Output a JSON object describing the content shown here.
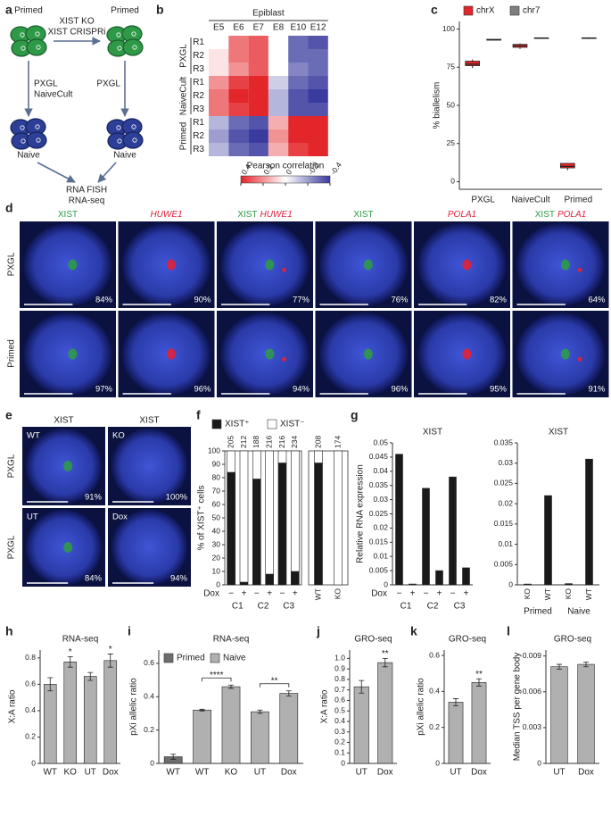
{
  "diagram": {
    "panel": "a",
    "primed_left": "Primed",
    "primed_right": "Primed",
    "ko_line1": "XIST KO",
    "ko_line2": "XIST CRISPRi",
    "left_arrow_line1": "PXGL",
    "left_arrow_line2": "NaiveCult",
    "right_arrow": "PXGL",
    "naive_left": "Naive",
    "naive_right": "Naive",
    "readout_line1": "RNA FISH",
    "readout_line2": "RNA-seq"
  },
  "fish_d": {
    "panel": "d",
    "column_titles": [
      [
        "XIST"
      ],
      [
        "HUWE1"
      ],
      [
        "XIST",
        "HUWE1"
      ],
      [
        "XIST"
      ],
      [
        "POLA1"
      ],
      [
        "XIST",
        "POLA1"
      ]
    ],
    "column_title_colors": [
      [
        "#2e9a47"
      ],
      [
        "#e0213a"
      ],
      [
        "#2e9a47",
        "#e0213a"
      ],
      [
        "#2e9a47"
      ],
      [
        "#e0213a"
      ],
      [
        "#2e9a47",
        "#e0213a"
      ]
    ],
    "row_labels": [
      "PXGL",
      "Primed"
    ],
    "percentages": [
      [
        "84%",
        "90%",
        "77%",
        "76%",
        "82%",
        "64%"
      ],
      [
        "97%",
        "96%",
        "94%",
        "96%",
        "95%",
        "91%"
      ]
    ]
  },
  "fish_e": {
    "panel": "e",
    "column_titles": [
      "XIST",
      "XIST"
    ],
    "column_title_color": "#2e9a47",
    "row_labels": [
      "PXGL",
      "PXGL"
    ],
    "image_labels": [
      [
        "WT",
        "KO"
      ],
      [
        "UT",
        "Dox"
      ]
    ],
    "percentages": [
      [
        "91%",
        "100%"
      ],
      [
        "84%",
        "94%"
      ]
    ]
  },
  "chart_data": [
    {
      "panel": "b",
      "type": "heatmap",
      "title": "Epiblast",
      "x_categories": [
        "E5",
        "E6",
        "E7",
        "E8",
        "E10",
        "E12"
      ],
      "rows": [
        "R1",
        "R2",
        "R3",
        "R1",
        "R2",
        "R3",
        "R1",
        "R2",
        "R3"
      ],
      "row_groups": [
        "PXGL",
        "NaiveCult",
        "Primed"
      ],
      "values": [
        [
          0,
          0.25,
          0.3,
          0,
          -0.3,
          -0.35
        ],
        [
          0.05,
          0.25,
          0.3,
          0,
          -0.3,
          -0.3
        ],
        [
          0.05,
          0.2,
          0.3,
          0,
          -0.25,
          -0.3
        ],
        [
          0.2,
          0.35,
          0.4,
          -0.1,
          -0.3,
          -0.35
        ],
        [
          0.25,
          0.4,
          0.4,
          -0.15,
          -0.35,
          -0.4
        ],
        [
          0.25,
          0.35,
          0.4,
          -0.15,
          -0.35,
          -0.35
        ],
        [
          -0.15,
          -0.3,
          -0.35,
          0.15,
          0.4,
          0.4
        ],
        [
          -0.2,
          -0.35,
          -0.4,
          0.2,
          0.4,
          0.4
        ],
        [
          -0.15,
          -0.3,
          -0.35,
          0.15,
          0.35,
          0.4
        ]
      ],
      "colorbar_label": "Pearson correlation",
      "clim": [
        0.4,
        -0.4
      ],
      "colorbar_ticks": [
        0.4,
        0.2,
        0,
        -0.2,
        -0.4
      ],
      "colors": {
        "positive": "#e3262a",
        "zero": "#ffffff",
        "negative": "#3a3b9e"
      }
    },
    {
      "panel": "c",
      "type": "box",
      "categories": [
        "PXGL",
        "NaiveCult",
        "Primed"
      ],
      "y_label": "% biallelism",
      "ylim": [
        -5,
        105
      ],
      "yticks": [
        0,
        25,
        50,
        75,
        100
      ],
      "legend": "top-left",
      "series": [
        {
          "name": "chrX",
          "color": "#e3262a",
          "median": [
            77,
            89,
            10
          ],
          "q1": [
            76,
            88,
            9
          ],
          "q3": [
            79,
            90,
            12
          ],
          "whisker_low": [
            74.5,
            87,
            7.5
          ],
          "whisker_high": [
            80,
            90.5,
            12
          ]
        },
        {
          "name": "chr7",
          "color": "#7f7f7f",
          "median": [
            93,
            94,
            94
          ],
          "q1": [
            92.7,
            93.8,
            93.8
          ],
          "q3": [
            93.3,
            94.3,
            94.3
          ],
          "whisker_low": [
            92.5,
            93.5,
            93.5
          ],
          "whisker_high": [
            93.5,
            94.5,
            94.5
          ]
        }
      ]
    },
    {
      "panel": "f",
      "type": "stacked_bar",
      "categories": [
        "−",
        "+",
        "−",
        "+",
        "−",
        "+",
        "WT",
        "KO"
      ],
      "group_labels": [
        "C1",
        "C2",
        "C3"
      ],
      "x_label": "Dox",
      "y_label": "% of XIST⁺ cells",
      "ylim": [
        0,
        100
      ],
      "yticks": [
        0,
        10,
        20,
        30,
        40,
        50,
        60,
        70,
        80,
        90,
        100
      ],
      "legend": "top-left",
      "n": [
        205,
        212,
        188,
        216,
        216,
        234,
        208,
        174
      ],
      "series": [
        {
          "name": "XIST⁺",
          "color": "#1a1a1a",
          "values": [
            84,
            2,
            79,
            8,
            91,
            10,
            91,
            0
          ]
        },
        {
          "name": "XIST⁻",
          "color": "#ffffff",
          "values": [
            16,
            98,
            21,
            92,
            9,
            90,
            9,
            100
          ]
        }
      ]
    },
    {
      "panel": "g",
      "type": "bar",
      "title": "XIST",
      "categories": [
        "−",
        "+",
        "−",
        "+",
        "−",
        "+"
      ],
      "group_labels": [
        "C1",
        "C2",
        "C3"
      ],
      "x_label": "Dox",
      "y_label": "Relative RNA expression",
      "ylim": [
        0,
        0.05
      ],
      "yticks": [
        0,
        0.005,
        0.01,
        0.015,
        0.02,
        0.025,
        0.03,
        0.035,
        0.04,
        0.045,
        0.05
      ],
      "color": "#1a1a1a",
      "values": [
        0.046,
        0.0003,
        0.034,
        0.005,
        0.038,
        0.006
      ]
    },
    {
      "type": "bar",
      "title": "XIST",
      "categories": [
        "KO",
        "WT",
        "KO",
        "WT"
      ],
      "group_labels": [
        "Primed",
        "Naive"
      ],
      "ylim": [
        0,
        0.035
      ],
      "yticks": [
        0,
        0.005,
        0.01,
        0.015,
        0.02,
        0.025,
        0.03,
        0.035
      ],
      "color": "#1a1a1a",
      "values": [
        0.0002,
        0.022,
        0.0003,
        0.031
      ]
    },
    {
      "panel": "h",
      "type": "bar",
      "title": "RNA-seq",
      "categories": [
        "WT",
        "KO",
        "UT",
        "Dox"
      ],
      "y_label": "X:A ratio",
      "ylim": [
        0,
        0.86
      ],
      "yticks": [
        0,
        0.2,
        0.4,
        0.6,
        0.8
      ],
      "color": "#b0b0b0",
      "values": [
        0.6,
        0.77,
        0.66,
        0.78
      ],
      "errors": [
        0.05,
        0.04,
        0.03,
        0.05
      ],
      "stars": [
        null,
        "*",
        null,
        "*"
      ]
    },
    {
      "panel": "i",
      "type": "bar",
      "title": "RNA-seq",
      "categories": [
        "WT",
        "WT",
        "KO",
        "UT",
        "Dox"
      ],
      "y_label": "pXi allelic ratio",
      "ylim": [
        0,
        0.68
      ],
      "yticks": [
        0,
        0.2,
        0.4,
        0.6
      ],
      "legend": "top-left",
      "series": [
        {
          "name": "Primed",
          "color": "#6e6e6e",
          "values": [
            0.04,
            null,
            null,
            null,
            null
          ],
          "errors": [
            0.015,
            null,
            null,
            null,
            null
          ]
        },
        {
          "name": "Naive",
          "color": "#b0b0b0",
          "values": [
            null,
            0.32,
            0.46,
            0.31,
            0.42
          ],
          "errors": [
            null,
            0.005,
            0.01,
            0.01,
            0.015
          ]
        }
      ],
      "stars": [
        null,
        null,
        "****",
        null,
        "**"
      ],
      "star_style": "bracket"
    },
    {
      "panel": "j",
      "type": "bar",
      "title": "GRO-seq",
      "categories": [
        "UT",
        "Dox"
      ],
      "y_label": "X:A ratio",
      "ylim": [
        0,
        1.08
      ],
      "yticks": [
        0,
        0.1,
        0.2,
        0.3,
        0.4,
        0.5,
        0.6,
        0.7,
        0.8,
        0.9,
        {
          "value": 1,
          "label": "1.0"
        }
      ],
      "color": "#b0b0b0",
      "values": [
        0.73,
        0.96
      ],
      "errors": [
        0.06,
        0.04
      ],
      "stars": [
        null,
        "**"
      ]
    },
    {
      "panel": "k",
      "type": "bar",
      "title": "GRO-seq",
      "categories": [
        "UT",
        "Dox"
      ],
      "y_label": "pXi allelic ratio",
      "ylim": [
        0,
        0.63
      ],
      "yticks": [
        0,
        0.2,
        0.4,
        0.6
      ],
      "color": "#b0b0b0",
      "values": [
        0.34,
        0.45
      ],
      "errors": [
        0.02,
        0.02
      ],
      "stars": [
        null,
        "**"
      ]
    },
    {
      "panel": "l",
      "type": "bar",
      "title": "GRO-seq",
      "categories": [
        "UT",
        "Dox"
      ],
      "y_label": "Median TSS per gene body",
      "ylim": [
        0,
        0.0095
      ],
      "yticks": [
        0,
        0.003,
        0.006,
        0.009
      ],
      "color": "#b0b0b0",
      "values": [
        0.0081,
        0.0083
      ],
      "errors": [
        0.0002,
        0.0002
      ]
    }
  ]
}
